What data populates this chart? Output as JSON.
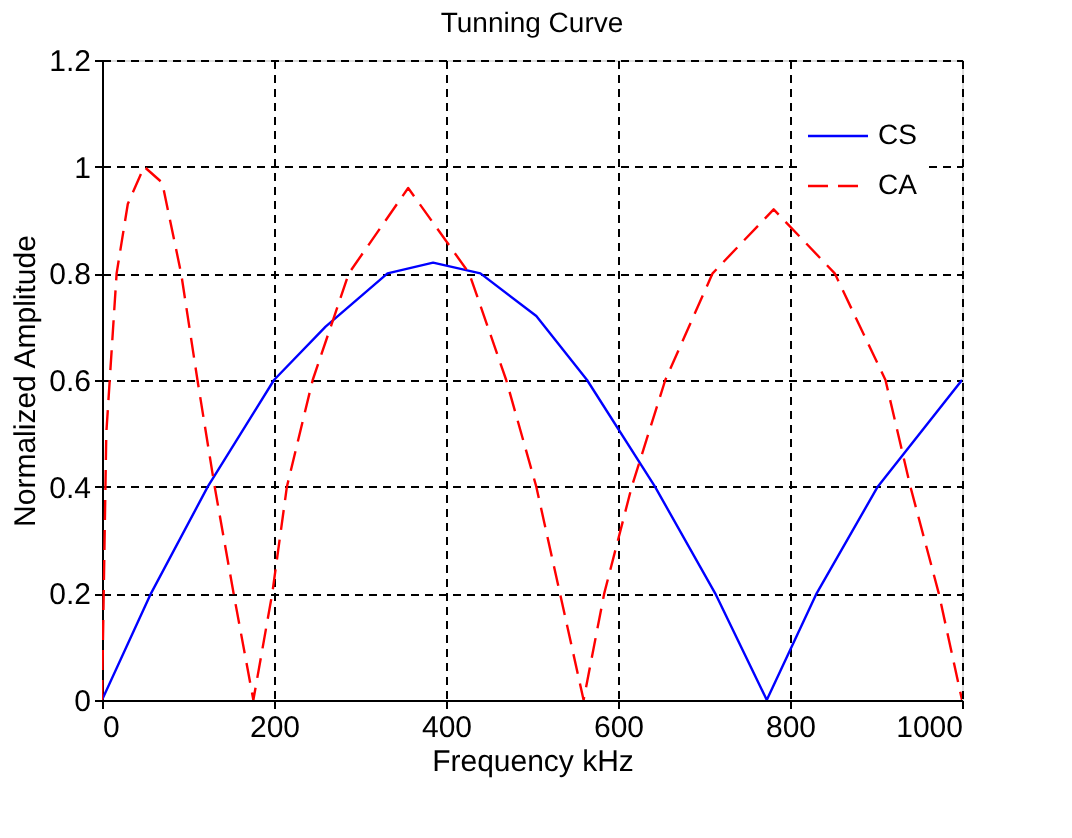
{
  "chart_data": {
    "type": "line",
    "title": "Tunning Curve",
    "xlabel": "Frequency  kHz",
    "ylabel": "Normalized Amplitude",
    "xlim": [
      0,
      1000
    ],
    "ylim": [
      0,
      1.2
    ],
    "xticks": [
      0,
      200,
      400,
      600,
      800,
      1000
    ],
    "yticks": [
      0,
      0.2,
      0.4,
      0.6,
      0.8,
      1,
      1.2
    ],
    "grid": true,
    "legend": "top right",
    "marker": "none",
    "series": [
      {
        "name": "CS",
        "color": "#0000ff",
        "line_style": "solid",
        "x": [
          0,
          57,
          123,
          200,
          260,
          332,
          385,
          440,
          505,
          564,
          643,
          713,
          773,
          831,
          902,
          1000
        ],
        "values": [
          0,
          0.2,
          0.4,
          0.6,
          0.7,
          0.8,
          0.82,
          0.8,
          0.72,
          0.6,
          0.4,
          0.2,
          0,
          0.2,
          0.4,
          0.6
        ]
      },
      {
        "name": "CA",
        "color": "#ff0000",
        "line_style": "dashed",
        "x": [
          0,
          2,
          5,
          17,
          30,
          49,
          70,
          92,
          111,
          131,
          153,
          176,
          198,
          215,
          245,
          287,
          356,
          427,
          470,
          505,
          560,
          584,
          616,
          655,
          710,
          781,
          852,
          911,
          940,
          973,
          1000
        ],
        "values": [
          0,
          0.2,
          0.5,
          0.8,
          0.93,
          1,
          0.97,
          0.8,
          0.6,
          0.4,
          0.2,
          0,
          0.2,
          0.4,
          0.6,
          0.8,
          0.96,
          0.8,
          0.6,
          0.4,
          0,
          0.2,
          0.4,
          0.6,
          0.8,
          0.92,
          0.8,
          0.6,
          0.4,
          0.2,
          0
        ]
      }
    ]
  }
}
